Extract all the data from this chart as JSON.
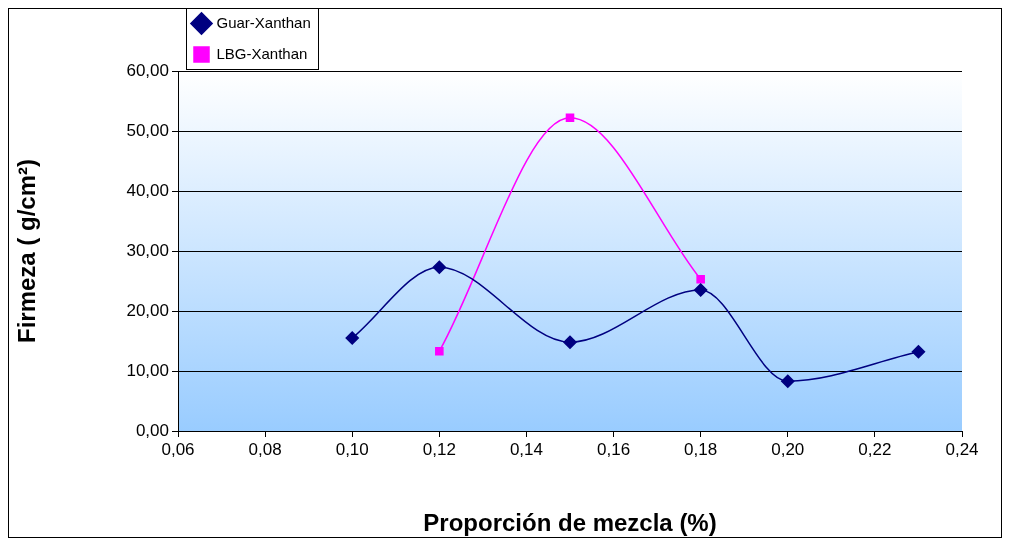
{
  "chart_data": {
    "type": "line",
    "xlabel": "Proporción de mezcla (%)",
    "ylabel": "Firmeza ( g/cm²)",
    "xlim": [
      0.06,
      0.24
    ],
    "xticks": [
      {
        "value": 0.06,
        "label": "0,06"
      },
      {
        "value": 0.08,
        "label": "0,08"
      },
      {
        "value": 0.1,
        "label": "0,10"
      },
      {
        "value": 0.12,
        "label": "0,12"
      },
      {
        "value": 0.14,
        "label": "0,14"
      },
      {
        "value": 0.16,
        "label": "0,16"
      },
      {
        "value": 0.18,
        "label": "0,18"
      },
      {
        "value": 0.2,
        "label": "0,20"
      },
      {
        "value": 0.22,
        "label": "0,22"
      },
      {
        "value": 0.24,
        "label": "0,24"
      }
    ],
    "ylim": [
      0,
      60
    ],
    "yticks": [
      {
        "value": 0,
        "label": "0,00"
      },
      {
        "value": 10,
        "label": "10,00"
      },
      {
        "value": 20,
        "label": "20,00"
      },
      {
        "value": 30,
        "label": "30,00"
      },
      {
        "value": 40,
        "label": "40,00"
      },
      {
        "value": 50,
        "label": "50,00"
      },
      {
        "value": 60,
        "label": "60,00"
      }
    ],
    "grid": "y",
    "legend": "top left",
    "series": [
      {
        "name": "Guar-Xanthan",
        "color": "#000080",
        "marker": "diamond",
        "x": [
          0.1,
          0.12,
          0.15,
          0.18,
          0.2,
          0.23
        ],
        "values": [
          15.5,
          27.3,
          14.8,
          23.5,
          8.3,
          13.2
        ]
      },
      {
        "name": "LBG-Xanthan",
        "color": "#ff00ff",
        "marker": "square",
        "x": [
          0.12,
          0.15,
          0.18
        ],
        "values": [
          13.3,
          52.2,
          25.3
        ]
      }
    ]
  }
}
